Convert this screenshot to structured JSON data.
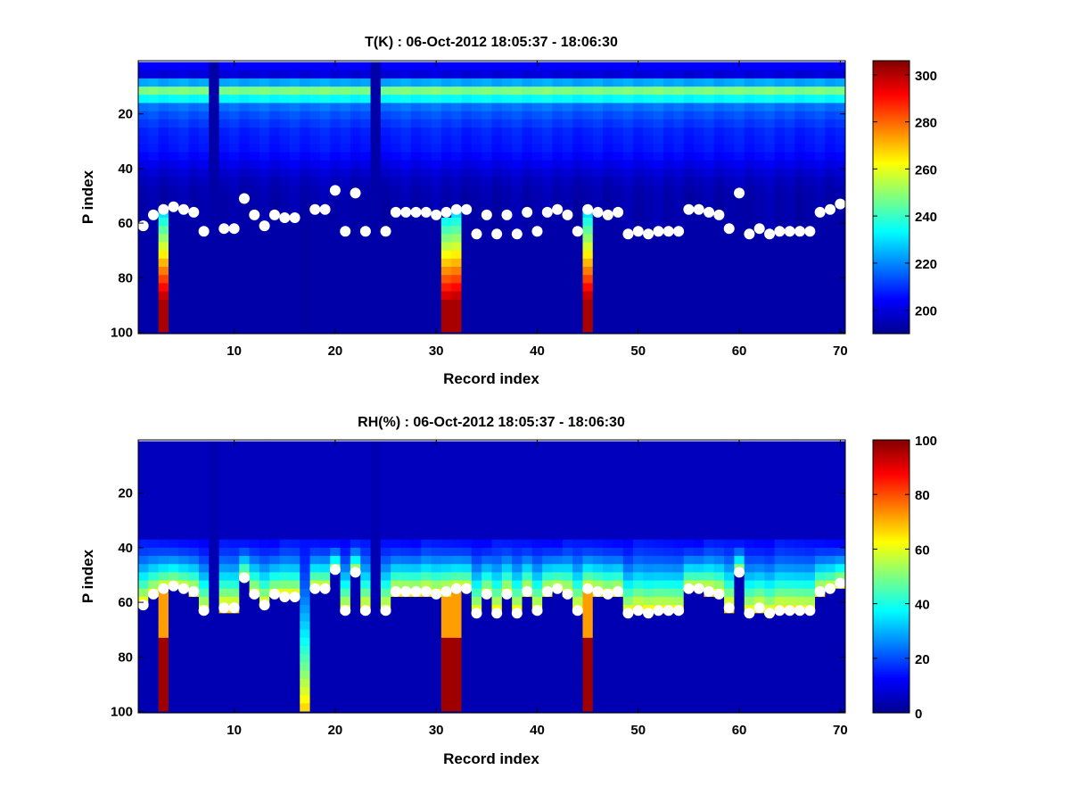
{
  "chart_data": [
    {
      "type": "heatmap",
      "title": "T(K) : 06-Oct-2012 18:05:37 - 18:06:30",
      "xlabel": "Record index",
      "ylabel": "P index",
      "xlim": [
        1,
        70
      ],
      "ylim": [
        100,
        1
      ],
      "x_ticks": [
        "10",
        "20",
        "30",
        "40",
        "50",
        "60",
        "70"
      ],
      "y_ticks": [
        "20",
        "40",
        "60",
        "80",
        "100"
      ],
      "colorbar_range": [
        190,
        306
      ],
      "colorbar_ticks": [
        "200",
        "220",
        "240",
        "260",
        "280",
        "300"
      ],
      "colormap": "jet",
      "surface_points": [
        61,
        57,
        55,
        54,
        55,
        56,
        63,
        0,
        62,
        62,
        51,
        57,
        61,
        57,
        58,
        58,
        0,
        55,
        55,
        48,
        63,
        49,
        63,
        0,
        63,
        56,
        56,
        56,
        56,
        57,
        56,
        55,
        55,
        64,
        57,
        64,
        57,
        64,
        56,
        63,
        56,
        55,
        57,
        63,
        55,
        56,
        57,
        56,
        64,
        63,
        64,
        63,
        63,
        63,
        55,
        55,
        56,
        57,
        62,
        49,
        64,
        62,
        64,
        63,
        63,
        63,
        63,
        56,
        55,
        53
      ]
    },
    {
      "type": "heatmap",
      "title": "RH(%) : 06-Oct-2012 18:05:37 - 18:06:30",
      "xlabel": "Record index",
      "ylabel": "P index",
      "xlim": [
        1,
        70
      ],
      "ylim": [
        100,
        1
      ],
      "x_ticks": [
        "10",
        "20",
        "30",
        "40",
        "50",
        "60",
        "70"
      ],
      "y_ticks": [
        "20",
        "40",
        "60",
        "80",
        "100"
      ],
      "colorbar_range": [
        0,
        100
      ],
      "colorbar_ticks": [
        "0",
        "20",
        "40",
        "60",
        "80",
        "100"
      ],
      "colormap": "jet",
      "surface_points": [
        61,
        57,
        55,
        54,
        55,
        56,
        63,
        0,
        62,
        62,
        51,
        57,
        61,
        57,
        58,
        58,
        0,
        55,
        55,
        48,
        63,
        49,
        63,
        0,
        63,
        56,
        56,
        56,
        56,
        57,
        56,
        55,
        55,
        64,
        57,
        64,
        57,
        64,
        56,
        63,
        56,
        55,
        57,
        63,
        55,
        56,
        57,
        56,
        64,
        63,
        64,
        63,
        63,
        63,
        55,
        55,
        56,
        57,
        62,
        49,
        64,
        62,
        64,
        63,
        63,
        63,
        63,
        56,
        55,
        53
      ]
    }
  ]
}
